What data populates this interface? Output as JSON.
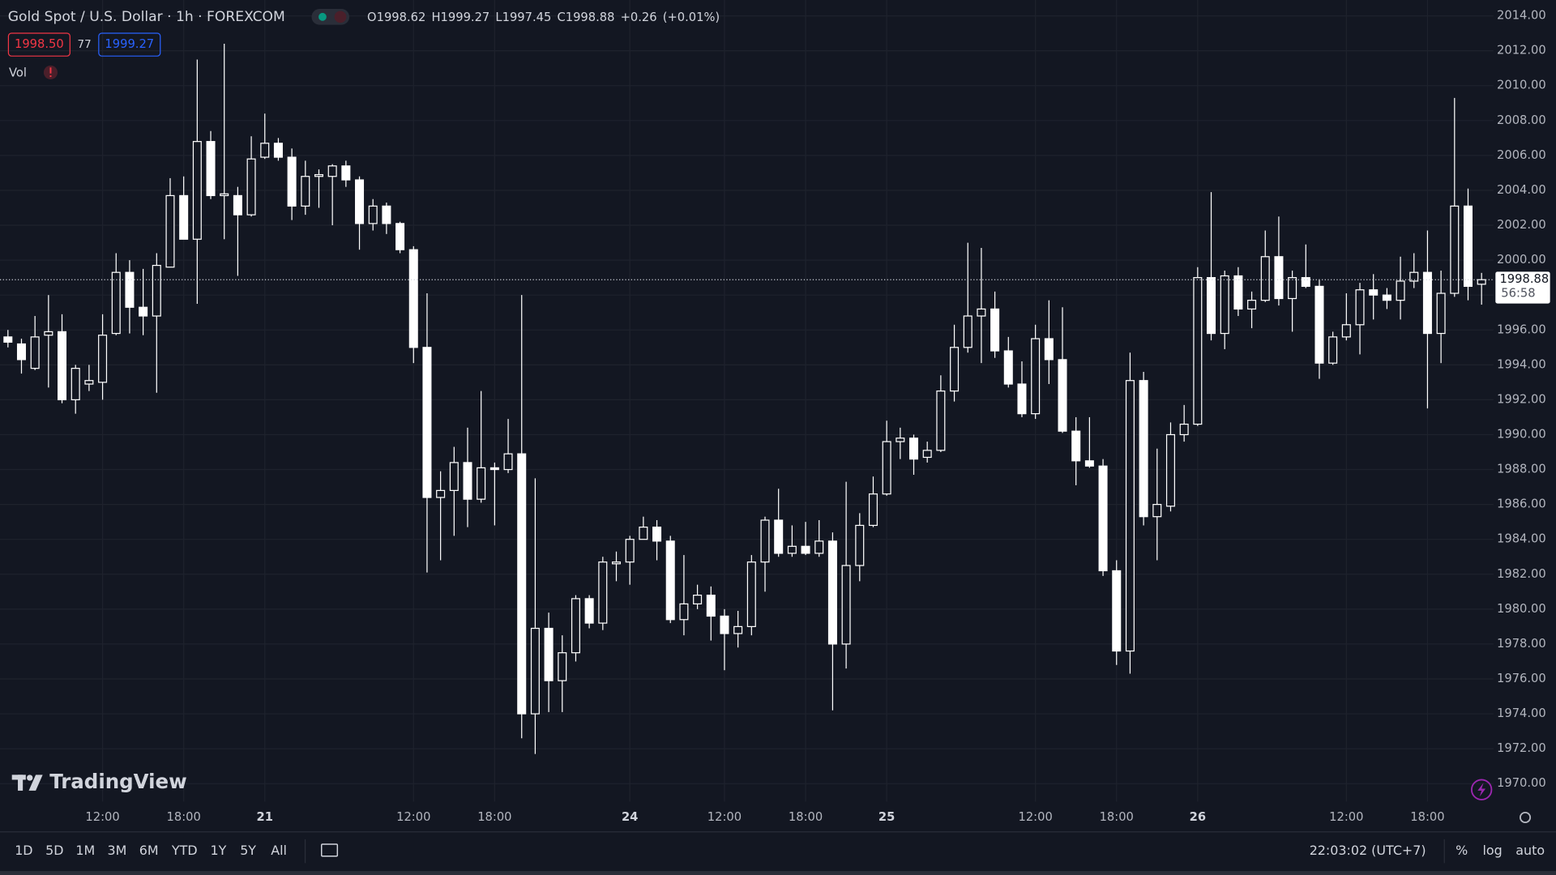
{
  "header": {
    "title": "Gold Spot / U.S. Dollar · 1h · FOREXCOM",
    "ohlc_labels": [
      "O",
      "H",
      "L",
      "C"
    ],
    "change": "+0.26",
    "change_pct": "(+0.01%)",
    "bid": "1998.50",
    "spread": "77",
    "ask": "1999.27",
    "volume_label": "Vol",
    "countdown": "56:58",
    "logo": "TradingView"
  },
  "toolbar": {
    "ranges": [
      "1D",
      "5D",
      "1M",
      "3M",
      "6M",
      "YTD",
      "1Y",
      "5Y",
      "All"
    ],
    "clock": "22:03:02 (UTC+7)",
    "options": [
      "%",
      "log",
      "auto"
    ]
  },
  "chart_data": {
    "type": "candlestick",
    "color": "#ffffff",
    "grid": true,
    "categories": [
      null,
      null,
      null,
      null,
      null,
      null,
      null,
      "12:00",
      null,
      null,
      null,
      null,
      null,
      "18:00",
      null,
      null,
      null,
      null,
      null,
      "21",
      null,
      null,
      null,
      null,
      null,
      null,
      null,
      null,
      null,
      null,
      "12:00",
      null,
      null,
      null,
      null,
      null,
      "18:00",
      null,
      null,
      null,
      null,
      null,
      null,
      null,
      null,
      null,
      "24",
      null,
      null,
      null,
      null,
      null,
      null,
      "12:00",
      null,
      null,
      null,
      null,
      null,
      "18:00",
      null,
      null,
      null,
      null,
      null,
      "25",
      null,
      null,
      null,
      null,
      null,
      null,
      null,
      null,
      null,
      null,
      "12:00",
      null,
      null,
      null,
      null,
      null,
      "18:00",
      null,
      null,
      null,
      null,
      null,
      "26",
      null,
      null,
      null,
      null,
      null,
      null,
      null,
      null,
      null,
      null,
      "12:00",
      null,
      null,
      null,
      null,
      null,
      "18:00",
      null,
      null,
      null,
      null
    ],
    "open": [
      1995.6,
      1995.2,
      1993.8,
      1995.7,
      1995.9,
      1992.0,
      1992.9,
      1993.0,
      1995.8,
      1999.3,
      1997.3,
      1996.8,
      1999.6,
      2003.7,
      2001.2,
      2006.8,
      2003.7,
      2003.7,
      2002.6,
      2005.9,
      2006.7,
      2005.9,
      2003.1,
      2004.8,
      2004.8,
      2005.4,
      2004.6,
      2002.1,
      2003.1,
      2002.1,
      2000.6,
      1995.0,
      1986.4,
      1986.8,
      1988.4,
      1986.3,
      1988.1,
      1988.0,
      1988.9,
      1974.0,
      1978.9,
      1975.9,
      1977.5,
      1980.6,
      1979.2,
      1982.6,
      1982.7,
      1984.0,
      1984.7,
      1983.9,
      1979.4,
      1980.3,
      1980.8,
      1979.6,
      1978.6,
      1979.0,
      1982.7,
      1985.1,
      1983.2,
      1983.6,
      1983.2,
      1983.9,
      1978.0,
      1982.5,
      1984.8,
      1986.6,
      1989.6,
      1989.8,
      1988.7,
      1989.1,
      1992.5,
      1995.0,
      1996.8,
      1997.2,
      1994.8,
      1992.9,
      1991.2,
      1995.5,
      1994.3,
      1990.2,
      1988.5,
      1988.2,
      1982.2,
      1977.6,
      1993.1,
      1985.3,
      1985.9,
      1990.0,
      1990.6,
      1999.0,
      1995.8,
      1999.1,
      1997.2,
      1997.7,
      2000.2,
      1997.8,
      1999.0,
      1998.5,
      1994.1,
      1995.6,
      1996.3,
      1998.3,
      1998.0,
      1997.7,
      1998.8,
      1999.3,
      1995.8,
      1998.1,
      2003.1,
      1998.62
    ],
    "high": [
      1996.0,
      1995.5,
      1996.8,
      1998.0,
      1996.9,
      1994.0,
      1994.0,
      1996.9,
      2000.4,
      2000.0,
      1999.5,
      2000.4,
      2004.7,
      2004.8,
      2011.5,
      2007.4,
      2012.4,
      2004.2,
      2007.1,
      2008.4,
      2007.0,
      2006.4,
      2005.7,
      2005.2,
      2005.5,
      2005.7,
      2004.8,
      2003.5,
      2003.3,
      2002.2,
      2000.8,
      1998.1,
      1987.9,
      1989.3,
      1990.4,
      1992.5,
      1988.4,
      1990.9,
      1998.0,
      1987.5,
      1979.8,
      1978.5,
      1980.8,
      1980.8,
      1983.0,
      1983.3,
      1984.2,
      1985.3,
      1985.1,
      1984.2,
      1983.1,
      1981.4,
      1981.3,
      1980.0,
      1979.9,
      1983.1,
      1985.3,
      1986.9,
      1984.8,
      1985.0,
      1985.1,
      1984.4,
      1987.3,
      1985.5,
      1987.6,
      1990.8,
      1990.4,
      1990.0,
      1989.6,
      1993.4,
      1996.3,
      2001.0,
      2000.7,
      1998.2,
      1995.6,
      1994.2,
      1996.3,
      1997.7,
      1997.3,
      1991.0,
      1991.0,
      1988.6,
      1982.8,
      1994.7,
      1993.6,
      1989.2,
      1990.7,
      1991.7,
      1999.6,
      2003.9,
      1999.4,
      1999.6,
      1998.2,
      2001.7,
      2002.5,
      1999.4,
      2000.9,
      1998.9,
      1995.9,
      1998.1,
      1998.7,
      1999.2,
      1998.4,
      2000.2,
      2000.4,
      2001.7,
      1999.4,
      2009.3,
      2004.1,
      1999.27
    ],
    "low": [
      1995.0,
      1993.5,
      1993.7,
      1992.7,
      1991.8,
      1991.2,
      1992.5,
      1992.0,
      1995.7,
      1995.8,
      1995.7,
      1992.4,
      1999.6,
      2001.2,
      1997.5,
      2003.5,
      2001.2,
      1999.1,
      2002.5,
      2005.8,
      2005.7,
      2002.3,
      2002.6,
      2003.0,
      2002.0,
      2004.2,
      2000.6,
      2001.7,
      2001.5,
      2000.4,
      1994.1,
      1982.1,
      1982.8,
      1984.2,
      1984.7,
      1986.1,
      1984.8,
      1987.8,
      1972.6,
      1971.7,
      1974.1,
      1974.1,
      1977.0,
      1978.9,
      1978.8,
      1981.6,
      1981.4,
      1984.0,
      1982.8,
      1979.2,
      1978.5,
      1980.0,
      1978.2,
      1976.5,
      1977.8,
      1978.5,
      1981.0,
      1983.0,
      1983.0,
      1983.1,
      1983.0,
      1974.2,
      1976.6,
      1981.6,
      1984.7,
      1986.5,
      1988.6,
      1987.7,
      1988.4,
      1989.0,
      1991.9,
      1994.7,
      1994.1,
      1994.4,
      1992.7,
      1991.0,
      1990.9,
      1992.9,
      1990.1,
      1987.1,
      1988.1,
      1981.9,
      1976.8,
      1976.3,
      1984.8,
      1982.8,
      1985.6,
      1989.6,
      1990.5,
      1995.4,
      1994.9,
      1996.8,
      1996.1,
      1997.6,
      1997.4,
      1995.9,
      1998.4,
      1993.2,
      1994.0,
      1995.4,
      1994.6,
      1996.6,
      1997.2,
      1996.6,
      1998.4,
      1991.5,
      1994.1,
      1997.9,
      1997.7,
      1997.45
    ],
    "close": [
      1995.3,
      1994.3,
      1995.6,
      1995.9,
      1992.0,
      1993.8,
      1993.1,
      1995.7,
      1999.3,
      1997.3,
      1996.8,
      1999.7,
      2003.7,
      2001.2,
      2006.8,
      2003.7,
      2003.8,
      2002.6,
      2005.8,
      2006.7,
      2005.9,
      2003.1,
      2004.8,
      2004.9,
      2005.4,
      2004.6,
      2002.1,
      2003.1,
      2002.1,
      2000.6,
      1995.0,
      1986.4,
      1986.8,
      1988.4,
      1986.3,
      1988.1,
      1988.0,
      1988.9,
      1974.0,
      1978.9,
      1975.9,
      1977.5,
      1980.6,
      1979.2,
      1982.7,
      1982.7,
      1984.0,
      1984.7,
      1983.9,
      1979.4,
      1980.3,
      1980.8,
      1979.6,
      1978.6,
      1979.0,
      1982.7,
      1985.1,
      1983.2,
      1983.6,
      1983.2,
      1983.9,
      1978.0,
      1982.5,
      1984.8,
      1986.6,
      1989.6,
      1989.8,
      1988.6,
      1989.1,
      1992.5,
      1995.0,
      1996.8,
      1997.2,
      1994.8,
      1992.9,
      1991.2,
      1995.5,
      1994.3,
      1990.2,
      1988.5,
      1988.2,
      1982.2,
      1977.6,
      1993.1,
      1985.3,
      1986.0,
      1990.0,
      1990.6,
      1999.0,
      1995.8,
      1999.1,
      1997.2,
      1997.7,
      2000.2,
      1997.8,
      1999.0,
      1998.5,
      1994.1,
      1995.6,
      1996.3,
      1998.3,
      1998.0,
      1997.7,
      1998.8,
      1999.3,
      1995.8,
      1998.1,
      2003.1,
      1998.5,
      1998.88
    ],
    "ylim": [
      1968.97,
      2014.91
    ],
    "yticks": [
      {
        "value": 1970,
        "label": "1970.00"
      },
      {
        "value": 1972,
        "label": "1972.00"
      },
      {
        "value": 1974,
        "label": "1974.00"
      },
      {
        "value": 1976,
        "label": "1976.00"
      },
      {
        "value": 1978,
        "label": "1978.00"
      },
      {
        "value": 1980,
        "label": "1980.00"
      },
      {
        "value": 1982,
        "label": "1982.00"
      },
      {
        "value": 1984,
        "label": "1984.00"
      },
      {
        "value": 1986,
        "label": "1986.00"
      },
      {
        "value": 1988,
        "label": "1988.00"
      },
      {
        "value": 1990,
        "label": "1990.00"
      },
      {
        "value": 1992,
        "label": "1992.00"
      },
      {
        "value": 1994,
        "label": "1994.00"
      },
      {
        "value": 1996,
        "label": "1996.00"
      },
      {
        "value": 1998,
        "label": "1998.00"
      },
      {
        "value": 2000,
        "label": "2000.00"
      },
      {
        "value": 2002,
        "label": "2002.00"
      },
      {
        "value": 2004,
        "label": "2004.00"
      },
      {
        "value": 2006,
        "label": "2006.00"
      },
      {
        "value": 2008,
        "label": "2008.00"
      },
      {
        "value": 2010,
        "label": "2010.00"
      },
      {
        "value": 2012,
        "label": "2012.00"
      },
      {
        "value": 2014,
        "label": "2014.00"
      }
    ]
  }
}
